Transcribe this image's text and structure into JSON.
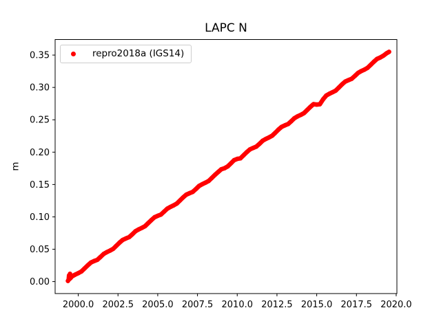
{
  "figure": {
    "background": "#ffffff"
  },
  "chart_data": {
    "type": "scatter",
    "title": "LAPC N",
    "xlabel": "",
    "ylabel": "m",
    "grid": false,
    "xlim": [
      1998.545,
      2020.045
    ],
    "ylim": [
      -0.0185,
      0.374
    ],
    "xticks": [
      2000.0,
      2002.5,
      2005.0,
      2007.5,
      2010.0,
      2012.5,
      2015.0,
      2017.5,
      2020.0
    ],
    "xtick_labels": [
      "2000.0",
      "2002.5",
      "2005.0",
      "2007.5",
      "2010.0",
      "2012.5",
      "2015.0",
      "2017.5",
      "2020.0"
    ],
    "yticks": [
      0.0,
      0.05,
      0.1,
      0.15,
      0.2,
      0.25,
      0.3,
      0.35
    ],
    "ytick_labels": [
      "0.00",
      "0.05",
      "0.10",
      "0.15",
      "0.20",
      "0.25",
      "0.30",
      "0.35"
    ],
    "axis_color": "#000000",
    "legend": {
      "position": "upper left",
      "entries": [
        {
          "label": "repro2018a (IGS14)",
          "color": "#ff0000",
          "marker": "dot"
        }
      ]
    },
    "series": [
      {
        "name": "repro2018a (IGS14)",
        "color": "#ff0000",
        "marker": ".",
        "x": [
          1999.35,
          1999.4,
          1999.42,
          1999.45,
          1999.48,
          1999.52,
          1999.6,
          1999.8,
          2000.0,
          2000.2,
          2000.4,
          2000.6,
          2000.8,
          2001.0,
          2001.2,
          2001.4,
          2001.6,
          2001.8,
          2002.0,
          2002.2,
          2002.4,
          2002.6,
          2002.8,
          2003.0,
          2003.2,
          2003.4,
          2003.6,
          2003.8,
          2004.0,
          2004.2,
          2004.4,
          2004.6,
          2004.8,
          2005.0,
          2005.2,
          2005.4,
          2005.6,
          2005.8,
          2006.0,
          2006.2,
          2006.4,
          2006.6,
          2006.8,
          2007.0,
          2007.2,
          2007.4,
          2007.6,
          2007.8,
          2008.0,
          2008.2,
          2008.4,
          2008.6,
          2008.8,
          2009.0,
          2009.2,
          2009.4,
          2009.6,
          2009.8,
          2010.0,
          2010.2,
          2010.4,
          2010.6,
          2010.8,
          2011.0,
          2011.2,
          2011.4,
          2011.6,
          2011.8,
          2012.0,
          2012.2,
          2012.4,
          2012.6,
          2012.8,
          2013.0,
          2013.2,
          2013.4,
          2013.6,
          2013.8,
          2014.0,
          2014.2,
          2014.4,
          2014.6,
          2014.8,
          2015.0,
          2015.2,
          2015.4,
          2015.6,
          2015.8,
          2016.0,
          2016.2,
          2016.4,
          2016.6,
          2016.8,
          2017.0,
          2017.2,
          2017.4,
          2017.6,
          2017.8,
          2018.0,
          2018.2,
          2018.4,
          2018.6,
          2018.8,
          2019.0,
          2019.2,
          2019.4,
          2019.55
        ],
        "y": [
          0.001,
          0.0032,
          0.0095,
          0.004,
          0.012,
          0.0055,
          0.0079,
          0.0107,
          0.013,
          0.0157,
          0.0204,
          0.0252,
          0.0295,
          0.0317,
          0.0337,
          0.0381,
          0.0428,
          0.0456,
          0.0479,
          0.0506,
          0.0554,
          0.0602,
          0.0645,
          0.0667,
          0.0687,
          0.0731,
          0.0778,
          0.0806,
          0.0829,
          0.0856,
          0.0904,
          0.0951,
          0.0994,
          0.1016,
          0.1036,
          0.108,
          0.1127,
          0.1155,
          0.1178,
          0.1205,
          0.1253,
          0.1301,
          0.1344,
          0.1366,
          0.1386,
          0.143,
          0.1477,
          0.1505,
          0.1528,
          0.1554,
          0.1602,
          0.165,
          0.1693,
          0.1736,
          0.1751,
          0.1779,
          0.1826,
          0.1876,
          0.1896,
          0.1904,
          0.1952,
          0.2,
          0.2043,
          0.2065,
          0.2085,
          0.2129,
          0.2176,
          0.2204,
          0.2227,
          0.2254,
          0.2301,
          0.2349,
          0.2392,
          0.2414,
          0.2434,
          0.2478,
          0.2525,
          0.2553,
          0.2576,
          0.2603,
          0.2651,
          0.2699,
          0.2742,
          0.2735,
          0.274,
          0.2815,
          0.2875,
          0.2903,
          0.2926,
          0.2952,
          0.3,
          0.3048,
          0.3091,
          0.3113,
          0.3133,
          0.3177,
          0.3224,
          0.3252,
          0.3275,
          0.3302,
          0.335,
          0.3398,
          0.3441,
          0.3463,
          0.3491,
          0.3529,
          0.355
        ]
      }
    ]
  }
}
